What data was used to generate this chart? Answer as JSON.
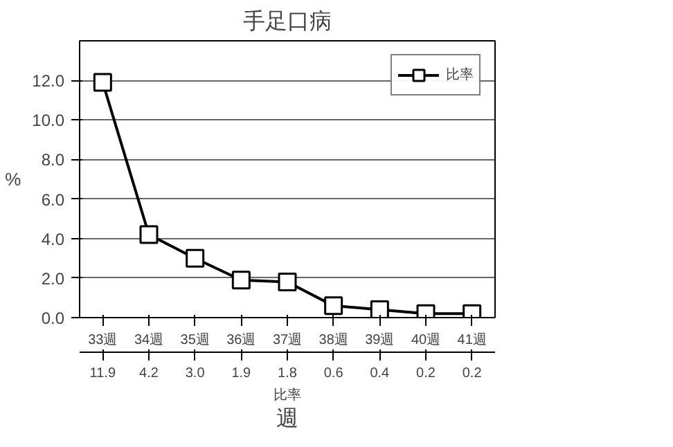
{
  "chart_data": {
    "type": "line",
    "title": "手足口病",
    "ylabel": "%",
    "xlabel": "週",
    "categories": [
      "33週",
      "34週",
      "35週",
      "36週",
      "37週",
      "38週",
      "39週",
      "40週",
      "41週"
    ],
    "series": [
      {
        "name": "比率",
        "color": "#000000",
        "values": [
          11.9,
          4.2,
          3.0,
          1.9,
          1.8,
          0.6,
          0.4,
          0.2,
          0.2
        ],
        "value_labels": [
          "11.9",
          "4.2",
          "3.0",
          "1.9",
          "1.8",
          "0.6",
          "0.4",
          "0.2",
          "0.2"
        ]
      }
    ],
    "ylim": [
      0,
      14
    ],
    "yticks": [
      "0.0",
      "2.0",
      "4.0",
      "6.0",
      "8.0",
      "10.0",
      "12.0"
    ],
    "grid": "y",
    "legend": "top right",
    "marker": "square",
    "line_style": "solid"
  }
}
